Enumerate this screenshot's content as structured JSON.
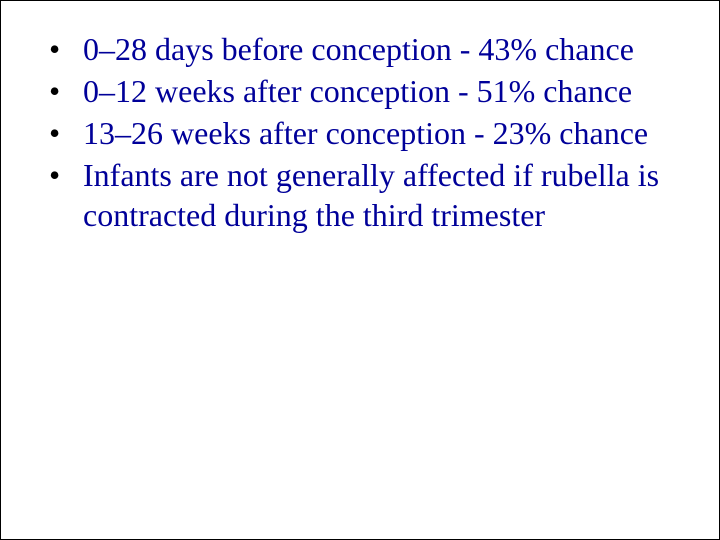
{
  "bullet_list": {
    "text_color": "#000099",
    "bullet_color": "#000000",
    "font_size": 32,
    "font_family": "Times New Roman",
    "background_color": "#ffffff",
    "items": [
      "0–28 days before conception - 43% chance",
      "0–12 weeks after conception - 51% chance",
      "13–26 weeks after conception - 23% chance",
      " Infants are not generally affected if rubella is contracted during the third trimester"
    ]
  }
}
